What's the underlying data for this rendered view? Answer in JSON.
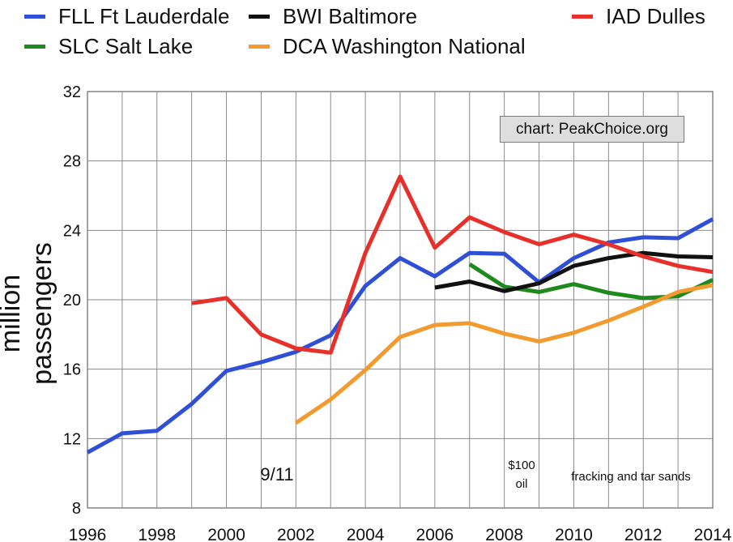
{
  "chart_data": {
    "type": "line",
    "ylabel": "million passengers",
    "xlabel": "",
    "xlim": [
      1996,
      2014
    ],
    "ylim": [
      8,
      32
    ],
    "x_ticks": [
      "1996",
      "1998",
      "2000",
      "2002",
      "2004",
      "2006",
      "2008",
      "2010",
      "2012",
      "2014"
    ],
    "y_ticks": [
      "8",
      "12",
      "16",
      "20",
      "24",
      "28",
      "32"
    ],
    "grid": true,
    "legend_position": "top",
    "watermark": "chart: PeakChoice.org",
    "annotations": [
      {
        "text": "9/11",
        "x": 2001
      },
      {
        "text": "$100",
        "x": 2008
      },
      {
        "text": "oil",
        "x": 2008
      },
      {
        "text": "fracking and tar sands",
        "x": 2011.5
      }
    ],
    "series": [
      {
        "name": "FLL Ft Lauderdale",
        "color": "#2f4fd6",
        "points": [
          [
            1996,
            11.2
          ],
          [
            1997,
            12.3
          ],
          [
            1998,
            12.45
          ],
          [
            1999,
            14.0
          ],
          [
            2000,
            15.9
          ],
          [
            2001,
            16.4
          ],
          [
            2002,
            17.0
          ],
          [
            2003,
            17.95
          ],
          [
            2004,
            20.8
          ],
          [
            2005,
            22.4
          ],
          [
            2006,
            21.35
          ],
          [
            2007,
            22.7
          ],
          [
            2008,
            22.65
          ],
          [
            2009,
            21.0
          ],
          [
            2010,
            22.4
          ],
          [
            2011,
            23.3
          ],
          [
            2012,
            23.6
          ],
          [
            2013,
            23.55
          ],
          [
            2014,
            24.65
          ]
        ]
      },
      {
        "name": "SLC Salt Lake",
        "color": "#1e8a1e",
        "points": [
          [
            2007,
            22.05
          ],
          [
            2008,
            20.75
          ],
          [
            2009,
            20.45
          ],
          [
            2010,
            20.9
          ],
          [
            2011,
            20.4
          ],
          [
            2012,
            20.1
          ],
          [
            2013,
            20.2
          ],
          [
            2014,
            21.15
          ]
        ]
      },
      {
        "name": "BWI Baltimore",
        "color": "#111111",
        "points": [
          [
            2006,
            20.7
          ],
          [
            2007,
            21.05
          ],
          [
            2008,
            20.5
          ],
          [
            2009,
            20.95
          ],
          [
            2010,
            21.95
          ],
          [
            2011,
            22.4
          ],
          [
            2012,
            22.7
          ],
          [
            2013,
            22.5
          ],
          [
            2014,
            22.45
          ]
        ]
      },
      {
        "name": "DCA Washington National",
        "color": "#f39a2e",
        "points": [
          [
            2002,
            12.9
          ],
          [
            2003,
            14.25
          ],
          [
            2004,
            15.95
          ],
          [
            2005,
            17.85
          ],
          [
            2006,
            18.55
          ],
          [
            2007,
            18.65
          ],
          [
            2008,
            18.05
          ],
          [
            2009,
            17.6
          ],
          [
            2010,
            18.1
          ],
          [
            2011,
            18.8
          ],
          [
            2012,
            19.6
          ],
          [
            2013,
            20.45
          ],
          [
            2014,
            20.85
          ]
        ]
      },
      {
        "name": "IAD Dulles",
        "color": "#e8302a",
        "points": [
          [
            1999,
            19.8
          ],
          [
            2000,
            20.1
          ],
          [
            2001,
            18.0
          ],
          [
            2002,
            17.2
          ],
          [
            2003,
            16.95
          ],
          [
            2004,
            22.7
          ],
          [
            2005,
            27.1
          ],
          [
            2006,
            23.0
          ],
          [
            2007,
            24.75
          ],
          [
            2008,
            23.9
          ],
          [
            2009,
            23.2
          ],
          [
            2010,
            23.75
          ],
          [
            2011,
            23.2
          ],
          [
            2012,
            22.5
          ],
          [
            2013,
            21.95
          ],
          [
            2014,
            21.6
          ]
        ]
      }
    ]
  }
}
